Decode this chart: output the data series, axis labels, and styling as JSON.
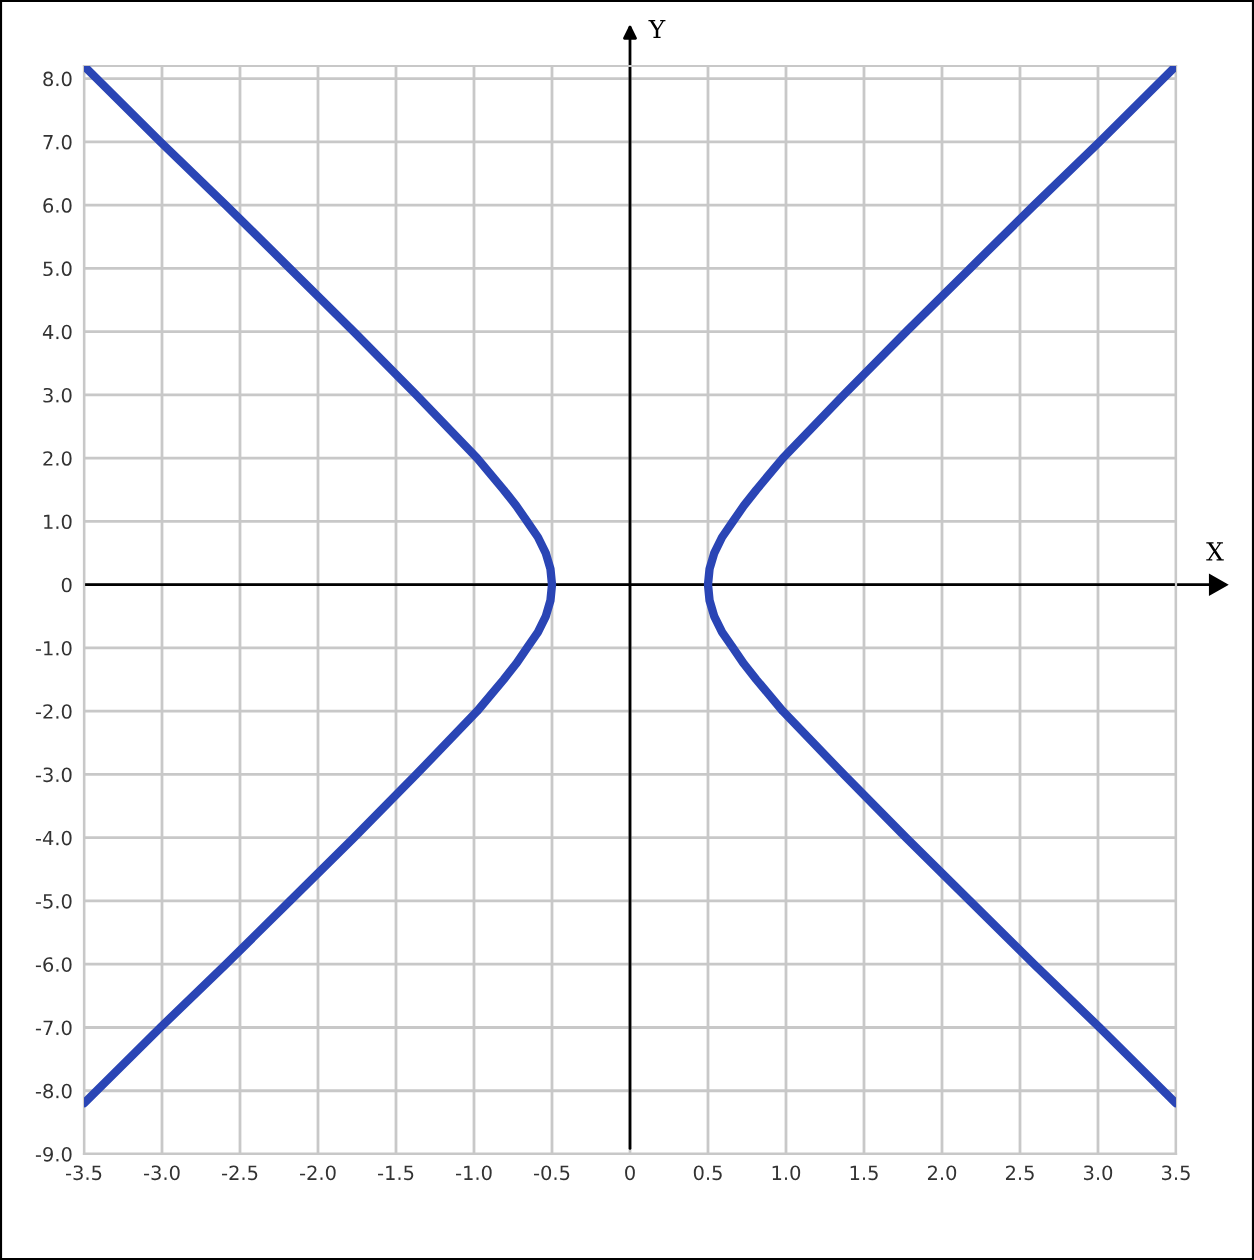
{
  "chart_data": {
    "type": "line",
    "xlabel": "X",
    "ylabel": "Y",
    "xlim": [
      -3.5,
      3.5
    ],
    "ylim": [
      -9.0,
      8.2
    ],
    "xticks": [
      {
        "value": -3.5,
        "label": "-3.5"
      },
      {
        "value": -3,
        "label": "-3.0"
      },
      {
        "value": -2.5,
        "label": "-2.5"
      },
      {
        "value": -2,
        "label": "-2.0"
      },
      {
        "value": -1.5,
        "label": "-1.5"
      },
      {
        "value": -1,
        "label": "-1.0"
      },
      {
        "value": -0.5,
        "label": "-0.5"
      },
      {
        "value": 0,
        "label": "0"
      },
      {
        "value": 0.5,
        "label": "0.5"
      },
      {
        "value": 1,
        "label": "1.0"
      },
      {
        "value": 1.5,
        "label": "1.5"
      },
      {
        "value": 2,
        "label": "2.0"
      },
      {
        "value": 2.5,
        "label": "2.5"
      },
      {
        "value": 3,
        "label": "3.0"
      },
      {
        "value": 3.5,
        "label": "3.5"
      }
    ],
    "yticks": [
      {
        "value": -9,
        "label": "-9.0"
      },
      {
        "value": -8,
        "label": "-8.0"
      },
      {
        "value": -7,
        "label": "-7.0"
      },
      {
        "value": -6,
        "label": "-6.0"
      },
      {
        "value": -5,
        "label": "-5.0"
      },
      {
        "value": -4,
        "label": "-4.0"
      },
      {
        "value": -3,
        "label": "-3.0"
      },
      {
        "value": -2,
        "label": "-2.0"
      },
      {
        "value": -1,
        "label": "-1.0"
      },
      {
        "value": 0,
        "label": "0"
      },
      {
        "value": 1,
        "label": "1.0"
      },
      {
        "value": 2,
        "label": "2.0"
      },
      {
        "value": 3,
        "label": "3.0"
      },
      {
        "value": 4,
        "label": "4.0"
      },
      {
        "value": 5,
        "label": "5.0"
      },
      {
        "value": 6,
        "label": "6.0"
      },
      {
        "value": 7,
        "label": "7.0"
      },
      {
        "value": 8,
        "label": "8.0"
      }
    ],
    "grid": true,
    "marker": "none",
    "line_style": "solid",
    "series": [
      {
        "color": "#2a45b5",
        "x": [
          3.5,
          3.01,
          2.59,
          2.18,
          1.77,
          1.37,
          0.98,
          0.81,
          0.73,
          0.66,
          0.59,
          0.54,
          0.51,
          0.5,
          0.51,
          0.54,
          0.59,
          0.66,
          0.73,
          0.81,
          0.98,
          1.37,
          1.77,
          2.18,
          2.59,
          3.01,
          3.5
        ],
        "values": [
          8.2,
          7,
          6,
          5,
          4,
          3,
          2,
          1.5,
          1.25,
          1,
          0.75,
          0.5,
          0.25,
          0,
          -0.25,
          -0.5,
          -0.75,
          -1,
          -1.25,
          -1.5,
          -2,
          -3,
          -4,
          -5,
          -6,
          -7,
          -8.2
        ]
      },
      {
        "color": "#2a45b5",
        "x": [
          -3.5,
          -3.01,
          -2.59,
          -2.18,
          -1.77,
          -1.37,
          -0.98,
          -0.81,
          -0.73,
          -0.66,
          -0.59,
          -0.54,
          -0.51,
          -0.5,
          -0.51,
          -0.54,
          -0.59,
          -0.66,
          -0.73,
          -0.81,
          -0.98,
          -1.37,
          -1.77,
          -2.18,
          -2.59,
          -3.01,
          -3.5
        ],
        "values": [
          8.2,
          7,
          6,
          5,
          4,
          3,
          2,
          1.5,
          1.25,
          1,
          0.75,
          0.5,
          0.25,
          0,
          -0.25,
          -0.5,
          -0.75,
          -1,
          -1.25,
          -1.5,
          -2,
          -3,
          -4,
          -5,
          -6,
          -7,
          -8.2
        ]
      }
    ]
  }
}
